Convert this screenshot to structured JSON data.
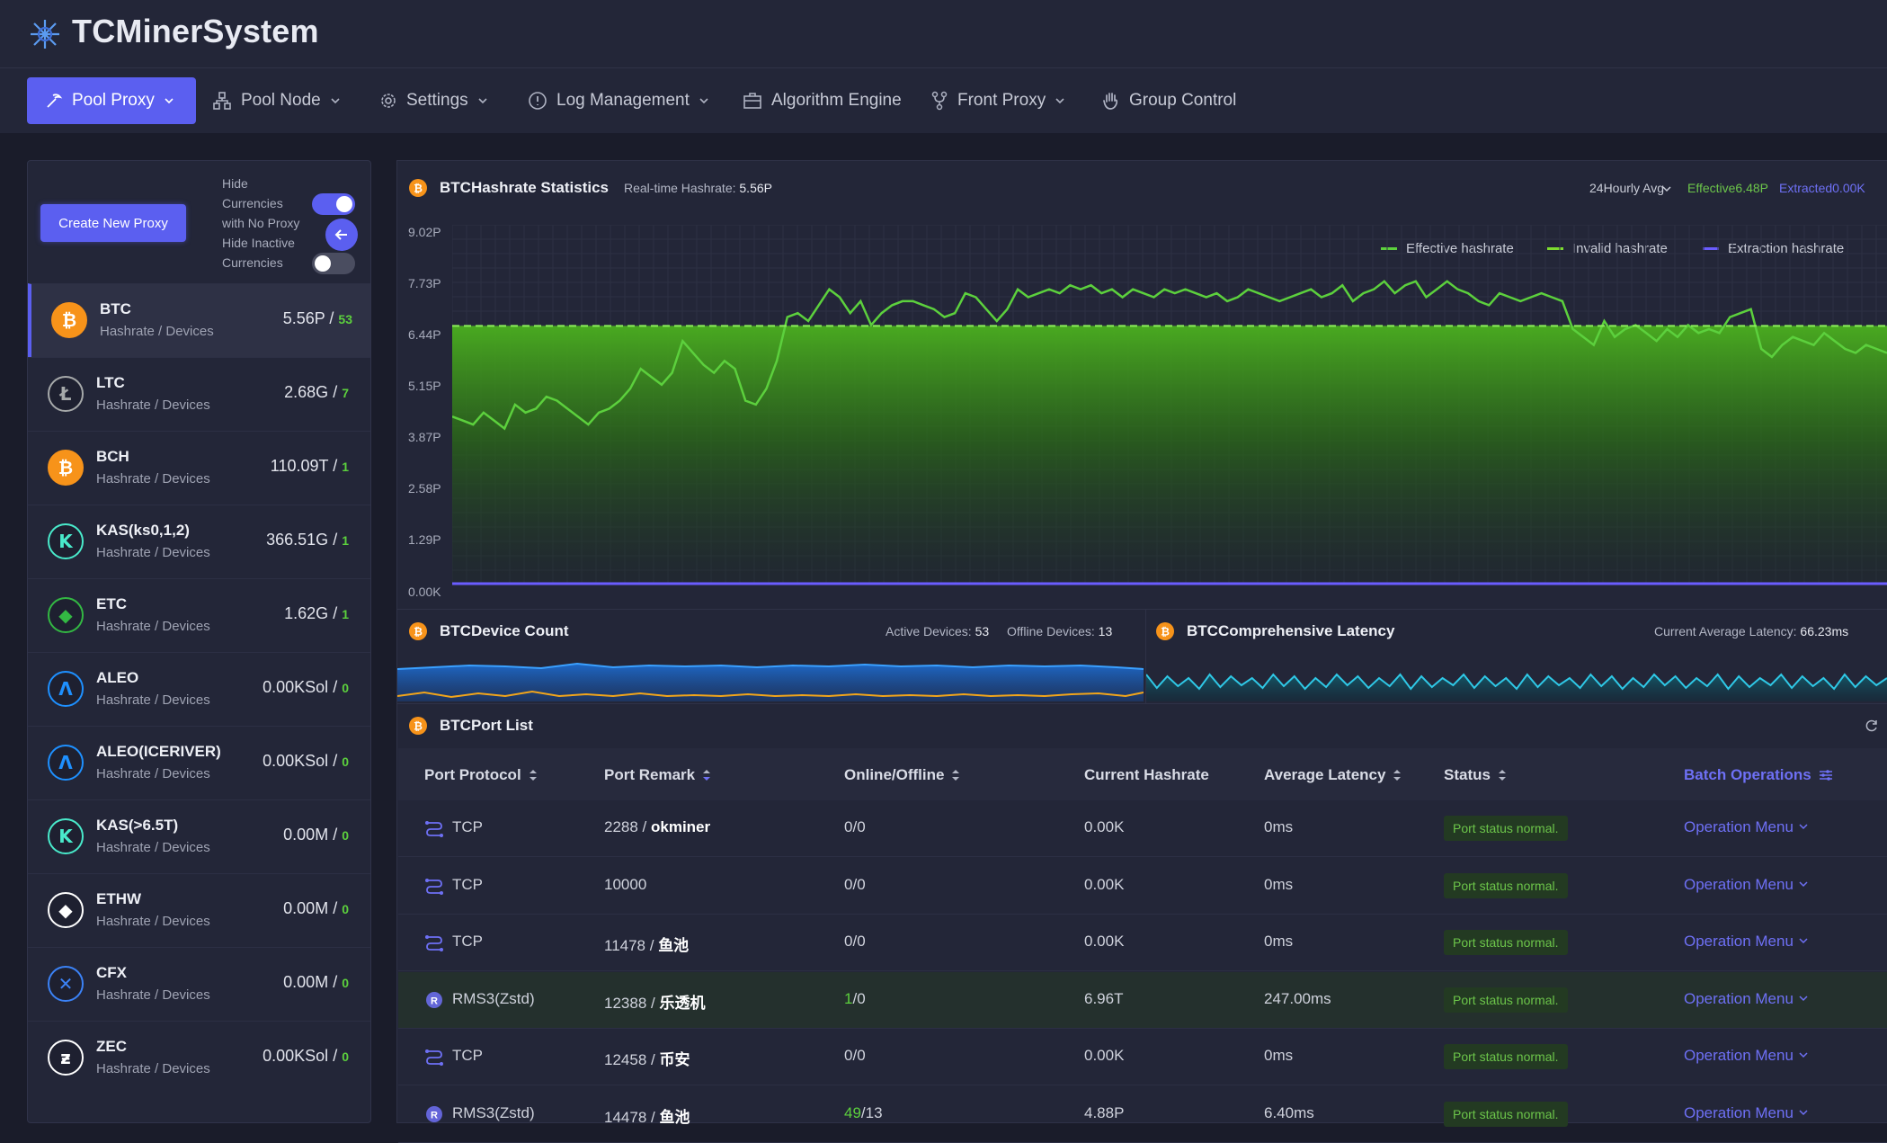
{
  "app": {
    "title": "TCMinerSystem"
  },
  "nav": {
    "items": [
      {
        "label": "Pool Proxy",
        "icon": "pickaxe-icon"
      },
      {
        "label": "Pool Node",
        "icon": "node-icon"
      },
      {
        "label": "Settings",
        "icon": "gear-icon"
      },
      {
        "label": "Log Management",
        "icon": "alert-circle-icon"
      },
      {
        "label": "Algorithm Engine",
        "icon": "briefcase-icon"
      },
      {
        "label": "Front Proxy",
        "icon": "fork-icon"
      },
      {
        "label": "Group Control",
        "icon": "hand-icon"
      }
    ]
  },
  "sidebar": {
    "create_label": "Create New Proxy",
    "toggle1_label": "Hide Currencies with No Proxy",
    "toggle1_line1": "Hide",
    "toggle1_line2": "Currencies",
    "toggle1_line3": "with No Proxy",
    "toggle2_line1": "Hide Inactive",
    "toggle2_line2": "Currencies",
    "toggle1_on": true,
    "toggle2_on": false,
    "coins": [
      {
        "name": "BTC",
        "sub": "Hashrate / Devices",
        "hash": "5.56P",
        "devices": "53",
        "color": "#f7931a"
      },
      {
        "name": "LTC",
        "sub": "Hashrate / Devices",
        "hash": "2.68G",
        "devices": "7",
        "color": "#a6a9aa"
      },
      {
        "name": "BCH",
        "sub": "Hashrate / Devices",
        "hash": "110.09T",
        "devices": "1",
        "color": "#f7931a"
      },
      {
        "name": "KAS(ks0,1,2)",
        "sub": "Hashrate / Devices",
        "hash": "366.51G",
        "devices": "1",
        "color": "#49eacb"
      },
      {
        "name": "ETC",
        "sub": "Hashrate / Devices",
        "hash": "1.62G",
        "devices": "1",
        "color": "#33b843"
      },
      {
        "name": "ALEO",
        "sub": "Hashrate / Devices",
        "hash": "0.00KSol",
        "devices": "0",
        "color": "#1e90ff"
      },
      {
        "name": "ALEO(ICERIVER)",
        "sub": "Hashrate / Devices",
        "hash": "0.00KSol",
        "devices": "0",
        "color": "#1e90ff"
      },
      {
        "name": "KAS(>6.5T)",
        "sub": "Hashrate / Devices",
        "hash": "0.00M",
        "devices": "0",
        "color": "#49eacb"
      },
      {
        "name": "ETHW",
        "sub": "Hashrate / Devices",
        "hash": "0.00M",
        "devices": "0",
        "color": "#ffffff"
      },
      {
        "name": "CFX",
        "sub": "Hashrate / Devices",
        "hash": "0.00M",
        "devices": "0",
        "color": "#3b82f6"
      },
      {
        "name": "ZEC",
        "sub": "Hashrate / Devices",
        "hash": "0.00KSol",
        "devices": "0",
        "color": "#ffffff"
      }
    ]
  },
  "hashrate_panel": {
    "title": "BTCHashrate Statistics",
    "realtime_label": "Real-time Hashrate:",
    "realtime_value": "5.56P",
    "period": "24Hourly Avg",
    "effective": "Effective6.48P",
    "extracted": "Extracted0.00K",
    "legend": [
      "Effective hashrate",
      "Invalid hashrate",
      "Extraction hashrate"
    ]
  },
  "chart_data": {
    "type": "area",
    "title": "BTCHashrate Statistics",
    "yticks": [
      "9.02P",
      "7.73P",
      "6.44P",
      "5.15P",
      "3.87P",
      "2.58P",
      "1.29P",
      "0.00K"
    ],
    "ylim": [
      0,
      9.02
    ],
    "average_line": 6.48,
    "series": [
      {
        "name": "Effective hashrate",
        "color": "#5cd03d",
        "values": [
          4.2,
          4.1,
          4.0,
          4.3,
          4.1,
          3.9,
          4.5,
          4.3,
          4.4,
          4.7,
          4.6,
          4.4,
          4.2,
          4.0,
          4.3,
          4.4,
          4.6,
          4.9,
          5.4,
          5.2,
          5.0,
          5.3,
          6.1,
          5.8,
          5.5,
          5.3,
          5.6,
          5.4,
          4.6,
          4.5,
          4.9,
          5.6,
          6.7,
          6.8,
          6.6,
          7.0,
          7.4,
          7.2,
          6.8,
          7.1,
          6.5,
          6.8,
          7.0,
          7.1,
          7.1,
          7.0,
          6.9,
          6.7,
          6.8,
          7.3,
          7.2,
          6.9,
          6.6,
          6.9,
          7.4,
          7.2,
          7.3,
          7.4,
          7.3,
          7.5,
          7.4,
          7.5,
          7.3,
          7.4,
          7.2,
          7.4,
          7.3,
          7.2,
          7.4,
          7.3,
          7.4,
          7.3,
          7.2,
          7.3,
          7.1,
          7.2,
          7.4,
          7.3,
          7.2,
          7.1,
          7.2,
          7.3,
          7.4,
          7.2,
          7.3,
          7.5,
          7.1,
          7.3,
          7.4,
          7.6,
          7.3,
          7.5,
          7.6,
          7.2,
          7.4,
          7.6,
          7.4,
          7.3,
          7.1,
          7.0,
          7.3,
          7.2,
          7.1,
          7.2,
          7.3,
          7.2,
          7.1,
          6.4,
          6.2,
          6.0,
          6.6,
          6.2,
          6.4,
          6.5,
          6.3,
          6.1,
          6.4,
          6.2,
          6.5,
          6.3,
          6.4,
          6.3,
          6.7,
          6.8,
          6.9,
          5.9,
          5.7,
          6.0,
          6.2,
          6.1,
          6.0,
          6.3,
          6.1,
          5.9,
          5.8,
          6.0,
          5.9,
          5.8
        ]
      },
      {
        "name": "Invalid hashrate",
        "color": "#7ddc2f",
        "values": [
          0,
          0,
          0,
          0,
          0,
          0,
          0,
          0,
          0,
          0
        ]
      },
      {
        "name": "Extraction hashrate",
        "color": "#6a5cff",
        "values": [
          0,
          0,
          0,
          0,
          0,
          0,
          0,
          0,
          0,
          0
        ]
      }
    ]
  },
  "device_panel": {
    "title": "BTCDevice Count",
    "active_label": "Active Devices:",
    "active_value": "53",
    "offline_label": "Offline Devices:",
    "offline_value": "13"
  },
  "latency_panel": {
    "title": "BTCComprehensive Latency",
    "avg_label": "Current Average Latency:",
    "avg_value": "66.23ms"
  },
  "port_list": {
    "title": "BTCPort List",
    "headers": [
      "Port Protocol",
      "Port Remark",
      "Online/Offline",
      "Current Hashrate",
      "Average Latency",
      "Status",
      "Batch Operations"
    ],
    "rows": [
      {
        "protocol": "TCP",
        "port": "2288",
        "remark": "okminer",
        "online": "0",
        "offline": "0",
        "hashrate": "0.00K",
        "latency": "0ms",
        "status": "Port status normal.",
        "op": "Operation Menu",
        "highlight": false,
        "rms": false
      },
      {
        "protocol": "TCP",
        "port": "10000",
        "remark": "",
        "online": "0",
        "offline": "0",
        "hashrate": "0.00K",
        "latency": "0ms",
        "status": "Port status normal.",
        "op": "Operation Menu",
        "highlight": false,
        "rms": false
      },
      {
        "protocol": "TCP",
        "port": "11478",
        "remark": "鱼池",
        "online": "0",
        "offline": "0",
        "hashrate": "0.00K",
        "latency": "0ms",
        "status": "Port status normal.",
        "op": "Operation Menu",
        "highlight": false,
        "rms": false
      },
      {
        "protocol": "RMS3(Zstd)",
        "port": "12388",
        "remark": "乐透机",
        "online": "1",
        "offline": "0",
        "hashrate": "6.96T",
        "latency": "247.00ms",
        "status": "Port status normal.",
        "op": "Operation Menu",
        "highlight": true,
        "rms": true
      },
      {
        "protocol": "TCP",
        "port": "12458",
        "remark": "币安",
        "online": "0",
        "offline": "0",
        "hashrate": "0.00K",
        "latency": "0ms",
        "status": "Port status normal.",
        "op": "Operation Menu",
        "highlight": false,
        "rms": false
      },
      {
        "protocol": "RMS3(Zstd)",
        "port": "14478",
        "remark": "鱼池",
        "online": "49",
        "offline": "13",
        "hashrate": "4.88P",
        "latency": "6.40ms",
        "status": "Port status normal.",
        "op": "Operation Menu",
        "highlight": false,
        "rms": true
      }
    ]
  }
}
